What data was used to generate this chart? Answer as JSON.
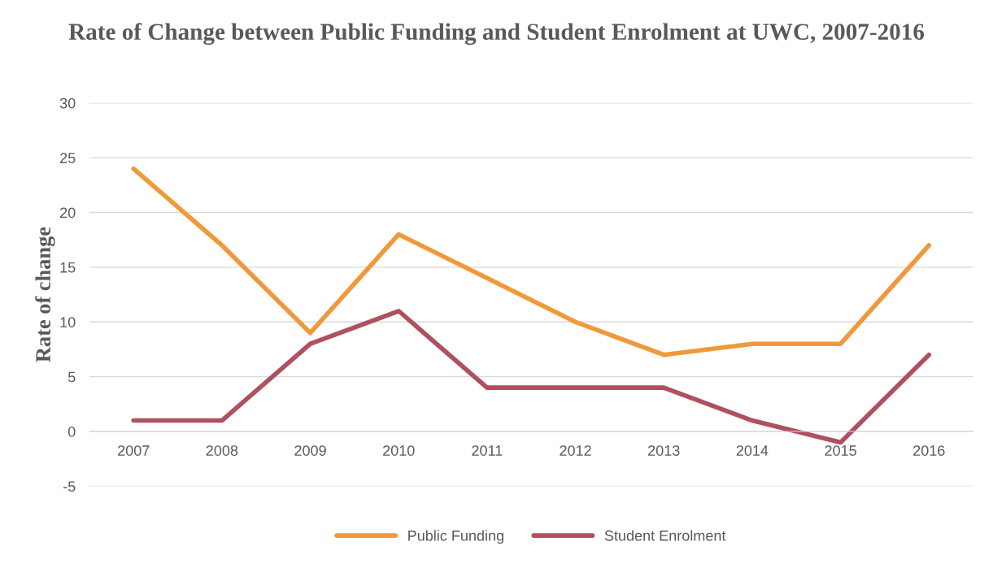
{
  "chart_data": {
    "type": "line",
    "title": "Rate of Change between Public Funding and Student Enrolment at UWC, 2007-2016",
    "ylabel": "Rate of change",
    "categories": [
      "2007",
      "2008",
      "2009",
      "2010",
      "2011",
      "2012",
      "2013",
      "2014",
      "2015",
      "2016"
    ],
    "series": [
      {
        "name": "Public Funding",
        "color": "#f0993b",
        "values": [
          24,
          17,
          9,
          18,
          14,
          10,
          7,
          8,
          8,
          17
        ]
      },
      {
        "name": "Student Enrolment",
        "color": "#b0505e",
        "values": [
          1,
          1,
          8,
          11,
          4,
          4,
          4,
          1,
          -1,
          7
        ]
      }
    ],
    "ylim": [
      -5,
      30
    ],
    "yticks": [
      -5,
      0,
      5,
      10,
      15,
      20,
      25,
      30
    ],
    "grid": "y",
    "legend": "bottom",
    "marker": "none",
    "line_style": "solid"
  }
}
